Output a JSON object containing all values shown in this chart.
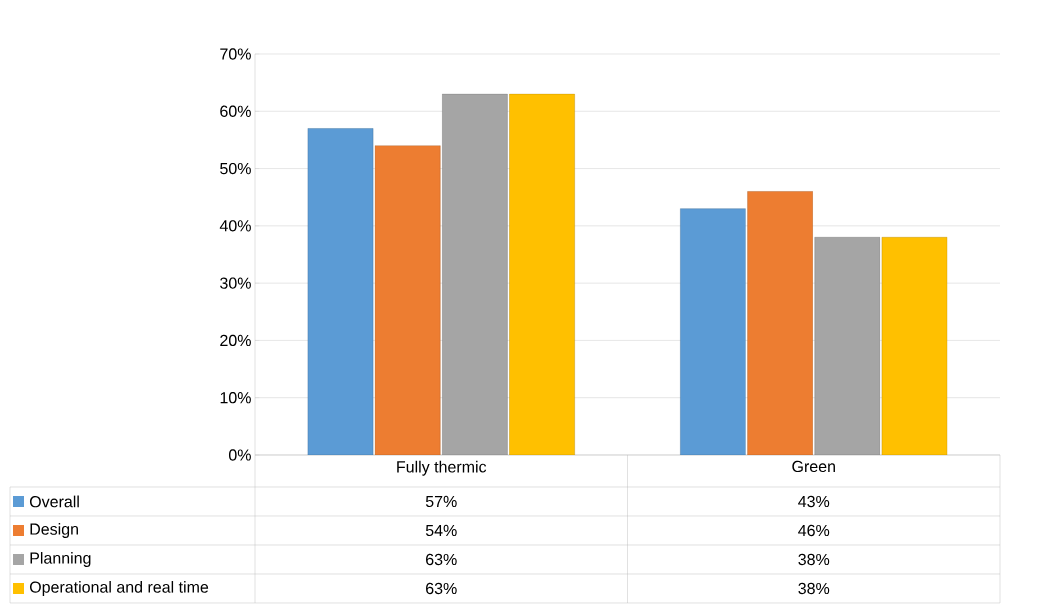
{
  "chart_data": {
    "type": "bar",
    "categories": [
      "Fully thermic",
      "Green"
    ],
    "series": [
      {
        "name": "Overall",
        "color": "#5b9bd5",
        "values": [
          57,
          43
        ],
        "value_labels": [
          "57%",
          "43%"
        ]
      },
      {
        "name": "Design",
        "color": "#ed7d31",
        "values": [
          54,
          46
        ],
        "value_labels": [
          "54%",
          "46%"
        ]
      },
      {
        "name": "Planning",
        "color": "#a5a5a5",
        "values": [
          63,
          38
        ],
        "value_labels": [
          "63%",
          "38%"
        ]
      },
      {
        "name": "Operational and real time",
        "color": "#ffc000",
        "values": [
          63,
          38
        ],
        "value_labels": [
          "63%",
          "38%"
        ]
      }
    ],
    "ylim": [
      0,
      70
    ],
    "yticks": [
      {
        "value": 0,
        "label": "0%"
      },
      {
        "value": 10,
        "label": "10%"
      },
      {
        "value": 20,
        "label": "20%"
      },
      {
        "value": 30,
        "label": "30%"
      },
      {
        "value": 40,
        "label": "40%"
      },
      {
        "value": 50,
        "label": "50%"
      },
      {
        "value": 60,
        "label": "60%"
      },
      {
        "value": 70,
        "label": "70%"
      }
    ],
    "grid": "y",
    "legend": "bottom"
  }
}
